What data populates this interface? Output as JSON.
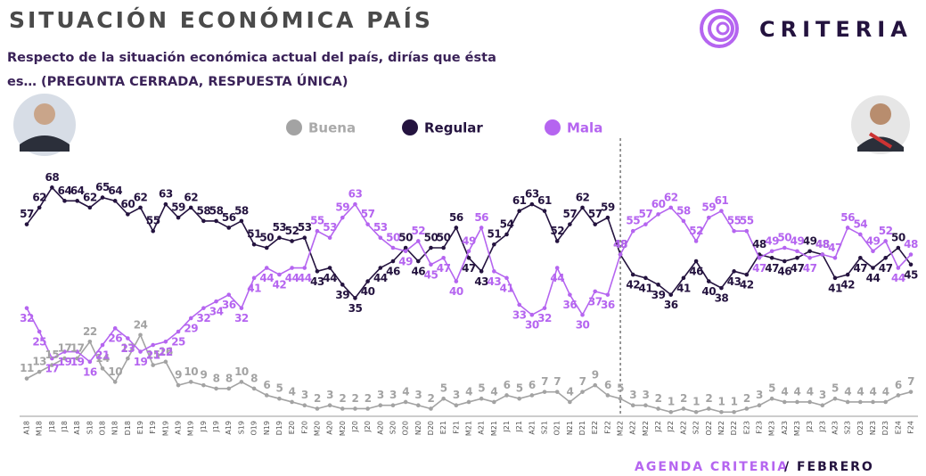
{
  "brand": "CRITERIA",
  "footer": {
    "program": "AGENDA CRITERIA",
    "month": "/ FEBRERO"
  },
  "chart_data": {
    "type": "line",
    "title": "SITUACIÓN ECONÓMICA PAÍS",
    "subtitle": "Respecto de la situación económica actual del país, dirías que ésta es… (PREGUNTA CERRADA, RESPUESTA ÚNICA)",
    "categories": [
      "A18",
      "M18",
      "J18",
      "J18",
      "A18",
      "S18",
      "O18",
      "N18",
      "D18",
      "E19",
      "F19",
      "M19",
      "A19",
      "M19",
      "J19",
      "J19",
      "A19",
      "S19",
      "O19",
      "N19",
      "D19",
      "E20",
      "F20",
      "M20",
      "A20",
      "M20",
      "J20",
      "J20",
      "A20",
      "S20",
      "O20",
      "N20",
      "D20",
      "E21",
      "F21",
      "M21",
      "A21",
      "M21",
      "J21",
      "J21",
      "A21",
      "S21",
      "O21",
      "N21",
      "D21",
      "E22",
      "F22",
      "M22",
      "A22",
      "M22",
      "J22",
      "J22",
      "A22",
      "S22",
      "O22",
      "N22",
      "D22",
      "E23",
      "F23",
      "M23",
      "A23",
      "M23",
      "J23",
      "J23",
      "A23",
      "S23",
      "O23",
      "N23",
      "D23",
      "E24",
      "F24"
    ],
    "ylim": [
      0,
      75
    ],
    "series": [
      {
        "name": "Buena",
        "color": "#a3a3a3",
        "values": [
          11,
          13,
          15,
          17,
          17,
          22,
          14,
          10,
          17,
          24,
          15,
          16,
          9,
          10,
          9,
          8,
          8,
          10,
          8,
          6,
          5,
          4,
          3,
          2,
          3,
          2,
          2,
          2,
          3,
          3,
          4,
          3,
          2,
          5,
          3,
          4,
          5,
          4,
          6,
          5,
          6,
          7,
          7,
          4,
          7,
          9,
          6,
          5,
          3,
          3,
          2,
          1,
          2,
          1,
          2,
          1,
          1,
          2,
          3,
          5,
          4,
          4,
          4,
          3,
          5,
          4,
          4,
          4,
          4,
          6,
          7
        ]
      },
      {
        "name": "Regular",
        "color": "#24133f",
        "values": [
          57,
          62,
          68,
          64,
          64,
          62,
          65,
          64,
          60,
          62,
          55,
          63,
          59,
          62,
          58,
          58,
          56,
          58,
          51,
          50,
          53,
          52,
          53,
          43,
          44,
          39,
          35,
          40,
          44,
          46,
          50,
          46,
          50,
          50,
          56,
          47,
          43,
          51,
          54,
          61,
          63,
          61,
          52,
          57,
          62,
          57,
          59,
          48,
          42,
          41,
          39,
          36,
          41,
          46,
          40,
          38,
          43,
          42,
          48,
          47,
          46,
          47,
          49,
          48,
          41,
          42,
          47,
          44,
          47,
          50,
          45
        ]
      },
      {
        "name": "Mala",
        "color": "#b565f0",
        "values": [
          32,
          25,
          17,
          19,
          19,
          16,
          21,
          26,
          23,
          19,
          21,
          22,
          25,
          29,
          32,
          34,
          36,
          32,
          41,
          44,
          42,
          44,
          44,
          55,
          53,
          59,
          63,
          57,
          53,
          50,
          49,
          52,
          45,
          47,
          40,
          49,
          56,
          43,
          41,
          33,
          30,
          32,
          44,
          36,
          30,
          37,
          36,
          48,
          55,
          57,
          60,
          62,
          58,
          52,
          59,
          61,
          55,
          55,
          47,
          49,
          50,
          49,
          47,
          48,
          47,
          56,
          54,
          49,
          52,
          44,
          48
        ]
      }
    ]
  }
}
